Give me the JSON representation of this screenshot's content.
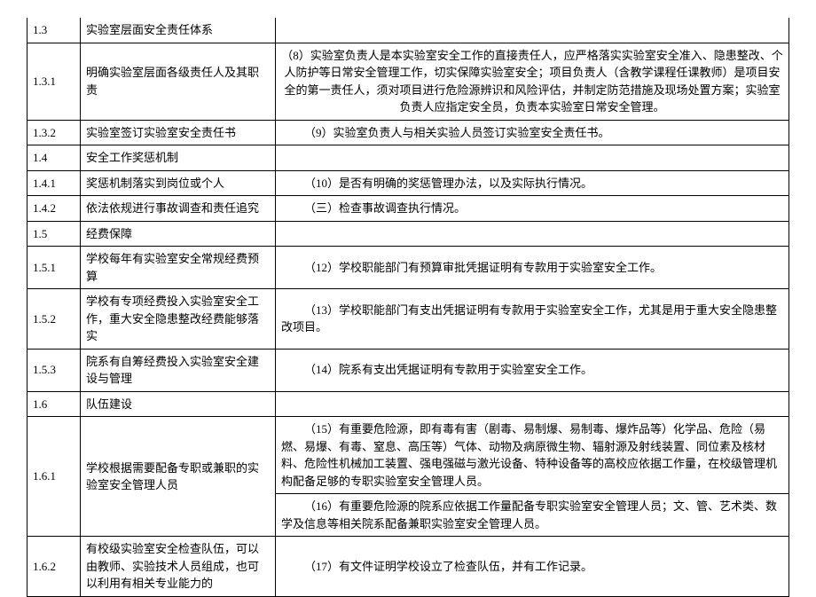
{
  "rows": [
    {
      "num": "1.3",
      "item": "实验室层面安全责任体系",
      "desc": ""
    },
    {
      "num": "1.3.1",
      "item": "明确实验室层面各级责任人及其职责",
      "desc": "（8）实验室负责人是本实验室安全工作的直接责任人，应严格落实实验室安全准入、隐患整改、个人防护等日常安全管理工作，切实保障实验室安全；项目负责人（含教学课程任课教师）是项目安全的第一责任人，须对项目进行危险源辨识和风险评估，并制定防范措施及现场处置方案；实验室负责人应指定安全员，负责本实验室日常安全管理。"
    },
    {
      "num": "1.3.2",
      "item": "实验室签订实验室安全责任书",
      "desc": "（9）实验室负责人与相关实验人员签订实验室安全责任书。"
    },
    {
      "num": "1.4",
      "item": "安全工作奖惩机制",
      "desc": ""
    },
    {
      "num": "1.4.1",
      "item": "奖惩机制落实到岗位或个人",
      "desc": "（10）是否有明确的奖惩管理办法，以及实际执行情况。"
    },
    {
      "num": "1.4.2",
      "item": "依法依规进行事故调查和责任追究",
      "desc": "（三）检查事故调查执行情况。"
    },
    {
      "num": "1.5",
      "item": "经费保障",
      "desc": ""
    },
    {
      "num": "1.5.1",
      "item": "学校每年有实验室安全常规经费预算",
      "desc": "（12）学校职能部门有预算审批凭据证明有专款用于实验室安全工作。"
    },
    {
      "num": "1.5.2",
      "item": "学校有专项经费投入实验室安全工作，重大安全隐患整改经费能够落实",
      "desc": "（13）学校职能部门有支出凭据证明有专款用于实验室安全工作，尤其是用于重大安全隐患整改项目。"
    },
    {
      "num": "1.5.3",
      "item": "院系有自筹经费投入实验室安全建设与管理",
      "desc": "（14）院系有支出凭据证明有专款用于实验室安全工作。"
    },
    {
      "num": "1.6",
      "item": "队伍建设",
      "desc": ""
    },
    {
      "num": "1.6.1",
      "item": "学校根据需要配备专职或兼职的实验室安全管理人员",
      "desc_a": "（15）有重要危险源，即有毒有害（剧毒、易制爆、易制毒、爆炸品等）化学品、危险（易燃、易爆、有毒、窒息、高压等）气体、动物及病原微生物、辐射源及射线装置、同位素及核材料、危险性机械加工装置、强电强磁与激光设备、特种设备等的高校应依据工作量，在校级管理机构配备足够的专职实验室安全管理人员。",
      "desc_b": "（16）有重要危险源的院系应依据工作量配备专职实验室安全管理人员；文、管、艺术类、数学及信息等相关院系配备兼职实验室安全管理人员。"
    },
    {
      "num": "1.6.2",
      "item": "有校级实验室安全检查队伍，可以由教师、实验技术人员组成，也可以利用有相关专业能力的",
      "desc": "（17）有文件证明学校设立了检查队伍，并有工作记录。"
    }
  ]
}
